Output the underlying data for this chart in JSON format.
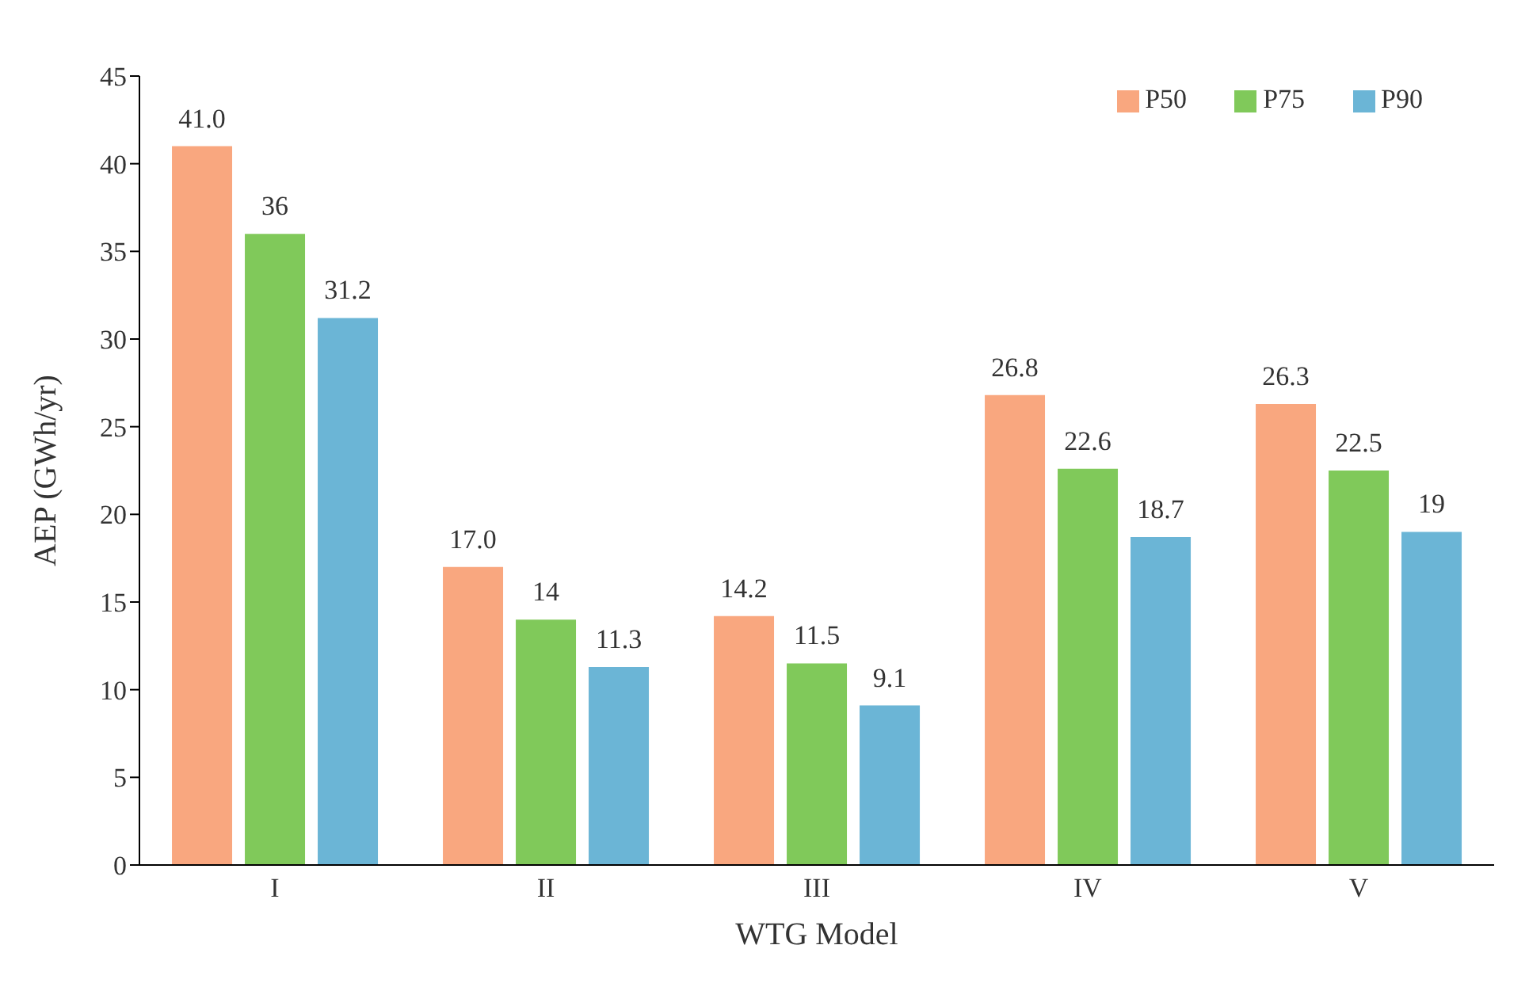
{
  "chart_data": {
    "type": "bar",
    "xlabel": "WTG Model",
    "ylabel": "AEP (GWh/yr)",
    "categories": [
      "I",
      "II",
      "III",
      "IV",
      "V"
    ],
    "series": [
      {
        "name": "P50",
        "color": "#f9a77f",
        "values": [
          41.0,
          17.0,
          14.2,
          26.8,
          26.3
        ],
        "value_labels": [
          "41.0",
          "17.0",
          "14.2",
          "26.8",
          "26.3"
        ]
      },
      {
        "name": "P75",
        "color": "#80c95a",
        "values": [
          36,
          14,
          11.5,
          22.6,
          22.5
        ],
        "value_labels": [
          "36",
          "14",
          "11.5",
          "22.6",
          "22.5"
        ]
      },
      {
        "name": "P90",
        "color": "#6bb5d6",
        "values": [
          31.2,
          11.3,
          9.1,
          18.7,
          19
        ],
        "value_labels": [
          "31.2",
          "11.3",
          "9.1",
          "18.7",
          "19"
        ]
      }
    ],
    "ylim": [
      0,
      45
    ],
    "yticks": [
      0,
      5,
      10,
      15,
      20,
      25,
      30,
      35,
      40,
      45
    ],
    "grid": false,
    "legend": "top right"
  }
}
